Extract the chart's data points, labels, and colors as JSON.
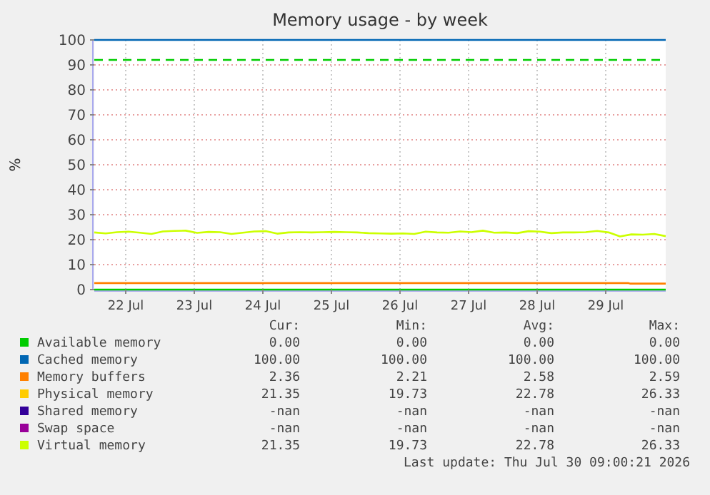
{
  "chart_data": {
    "type": "line",
    "title": "Memory usage - by week",
    "ylabel": "%",
    "xlim": [
      "2026-07-22T01:00",
      "2026-07-30T09:00"
    ],
    "xticks": [
      {
        "value": "2026-07-22T12:00",
        "label": "22 Jul"
      },
      {
        "value": "2026-07-23T12:00",
        "label": "23 Jul"
      },
      {
        "value": "2026-07-24T12:00",
        "label": "24 Jul"
      },
      {
        "value": "2026-07-25T12:00",
        "label": "25 Jul"
      },
      {
        "value": "2026-07-26T12:00",
        "label": "26 Jul"
      },
      {
        "value": "2026-07-27T12:00",
        "label": "27 Jul"
      },
      {
        "value": "2026-07-28T12:00",
        "label": "28 Jul"
      },
      {
        "value": "2026-07-29T12:00",
        "label": "29 Jul"
      }
    ],
    "ylim": [
      0,
      100
    ],
    "yticks": [
      0,
      10,
      20,
      30,
      40,
      50,
      60,
      70,
      80,
      90,
      100
    ],
    "grid": true,
    "legend": "bottom",
    "ref_lines": [
      {
        "axis": "y",
        "value": 92,
        "color": "#00cc00",
        "line_style": "dashed"
      }
    ],
    "series": [
      {
        "name": "Available memory",
        "color": "#00cc00",
        "x": [
          "2026-07-22T01:00",
          "2026-07-30T09:00"
        ],
        "values": [
          0,
          0
        ]
      },
      {
        "name": "Cached memory",
        "color": "#0066b3",
        "x": [
          "2026-07-22T01:00",
          "2026-07-30T09:00"
        ],
        "values": [
          100,
          100
        ]
      },
      {
        "name": "Memory buffers",
        "color": "#ff8000",
        "x": [
          "2026-07-22T01:00",
          "2026-07-29T20:00",
          "2026-07-29T20:30",
          "2026-07-30T09:00"
        ],
        "values": [
          2.6,
          2.6,
          2.4,
          2.4
        ]
      },
      {
        "name": "Physical memory",
        "color": "#ffcc00",
        "values": [
          null
        ]
      },
      {
        "name": "Shared memory",
        "color": "#330099",
        "values": [
          null
        ]
      },
      {
        "name": "Swap space",
        "color": "#990099",
        "values": [
          null
        ]
      },
      {
        "name": "Virtual memory",
        "color": "#ccff00",
        "x": [
          "2026-07-22T01:00",
          "2026-07-22T05:00",
          "2026-07-22T09:00",
          "2026-07-22T13:00",
          "2026-07-22T17:00",
          "2026-07-22T21:00",
          "2026-07-23T01:00",
          "2026-07-23T05:00",
          "2026-07-23T09:00",
          "2026-07-23T13:00",
          "2026-07-23T17:00",
          "2026-07-23T21:00",
          "2026-07-24T01:00",
          "2026-07-24T05:00",
          "2026-07-24T09:00",
          "2026-07-24T13:00",
          "2026-07-24T17:00",
          "2026-07-24T21:00",
          "2026-07-25T01:00",
          "2026-07-25T05:00",
          "2026-07-25T09:00",
          "2026-07-25T13:00",
          "2026-07-25T17:00",
          "2026-07-25T21:00",
          "2026-07-26T01:00",
          "2026-07-26T05:00",
          "2026-07-26T09:00",
          "2026-07-26T13:00",
          "2026-07-26T17:00",
          "2026-07-26T21:00",
          "2026-07-27T01:00",
          "2026-07-27T05:00",
          "2026-07-27T09:00",
          "2026-07-27T13:00",
          "2026-07-27T17:00",
          "2026-07-27T21:00",
          "2026-07-28T01:00",
          "2026-07-28T05:00",
          "2026-07-28T09:00",
          "2026-07-28T13:00",
          "2026-07-28T17:00",
          "2026-07-28T21:00",
          "2026-07-29T01:00",
          "2026-07-29T05:00",
          "2026-07-29T09:00",
          "2026-07-29T13:00",
          "2026-07-29T17:00",
          "2026-07-29T21:00",
          "2026-07-30T01:00",
          "2026-07-30T05:00",
          "2026-07-30T09:00"
        ],
        "values": [
          22.9,
          22.5,
          23.0,
          23.2,
          22.8,
          22.3,
          23.3,
          23.5,
          23.6,
          22.7,
          23.1,
          23.0,
          22.3,
          22.8,
          23.3,
          23.4,
          22.4,
          22.9,
          23.0,
          22.9,
          23.0,
          23.1,
          23.0,
          22.9,
          22.6,
          22.5,
          22.4,
          22.5,
          22.3,
          23.2,
          22.9,
          22.8,
          23.3,
          23.0,
          23.6,
          22.8,
          22.9,
          22.6,
          23.4,
          23.2,
          22.6,
          22.9,
          22.9,
          23.0,
          23.5,
          22.9,
          21.3,
          22.1,
          22.0,
          22.3,
          21.4
        ]
      }
    ],
    "annotations": [
      "Cur:",
      "Min:",
      "Avg:",
      "Max:",
      "0.00",
      "0.00",
      "0.00",
      "0.00",
      "100.00",
      "100.00",
      "100.00",
      "100.00",
      "2.36",
      "2.21",
      "2.58",
      "2.59",
      "21.35",
      "19.73",
      "22.78",
      "26.33",
      "-nan",
      "-nan",
      "-nan",
      "-nan",
      "-nan",
      "-nan",
      "-nan",
      "-nan",
      "21.35",
      "19.73",
      "22.78",
      "26.33",
      "Last update: Thu Jul 30 09:00:21 2026"
    ]
  }
}
